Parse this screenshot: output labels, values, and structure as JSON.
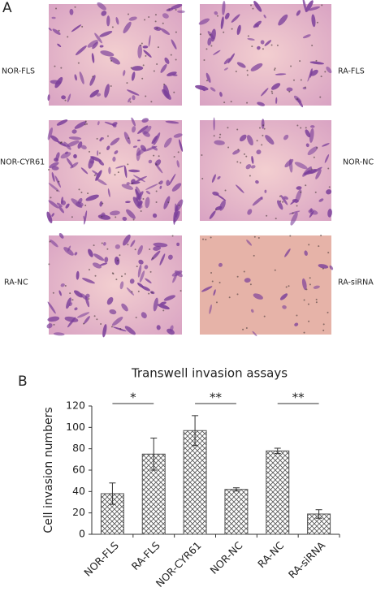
{
  "panels": {
    "a": "A",
    "b": "B"
  },
  "images": [
    {
      "label": "NOR-FLS"
    },
    {
      "label": "RA-FLS"
    },
    {
      "label": "NOR-CYR61"
    },
    {
      "label": "NOR-NC"
    },
    {
      "label": "RA-NC"
    },
    {
      "label": "RA-siRNA"
    }
  ],
  "chart_data": {
    "type": "bar",
    "title": "Transwell invasion assays",
    "y_label": "Cell invasion numbers",
    "categories": [
      "NOR-FLS",
      "RA-FLS",
      "NOR-CYR61",
      "NOR-NC",
      "RA-NC",
      "RA-siRNA"
    ],
    "values": [
      38,
      75,
      97,
      42,
      78,
      19
    ],
    "errors": [
      10,
      15,
      14,
      1.5,
      2.5,
      4
    ],
    "significance": [
      "*",
      "**",
      "**"
    ],
    "ylim": [
      0,
      120
    ],
    "yticks": [
      0,
      20,
      40,
      60,
      80,
      100,
      120
    ],
    "grid": false
  }
}
